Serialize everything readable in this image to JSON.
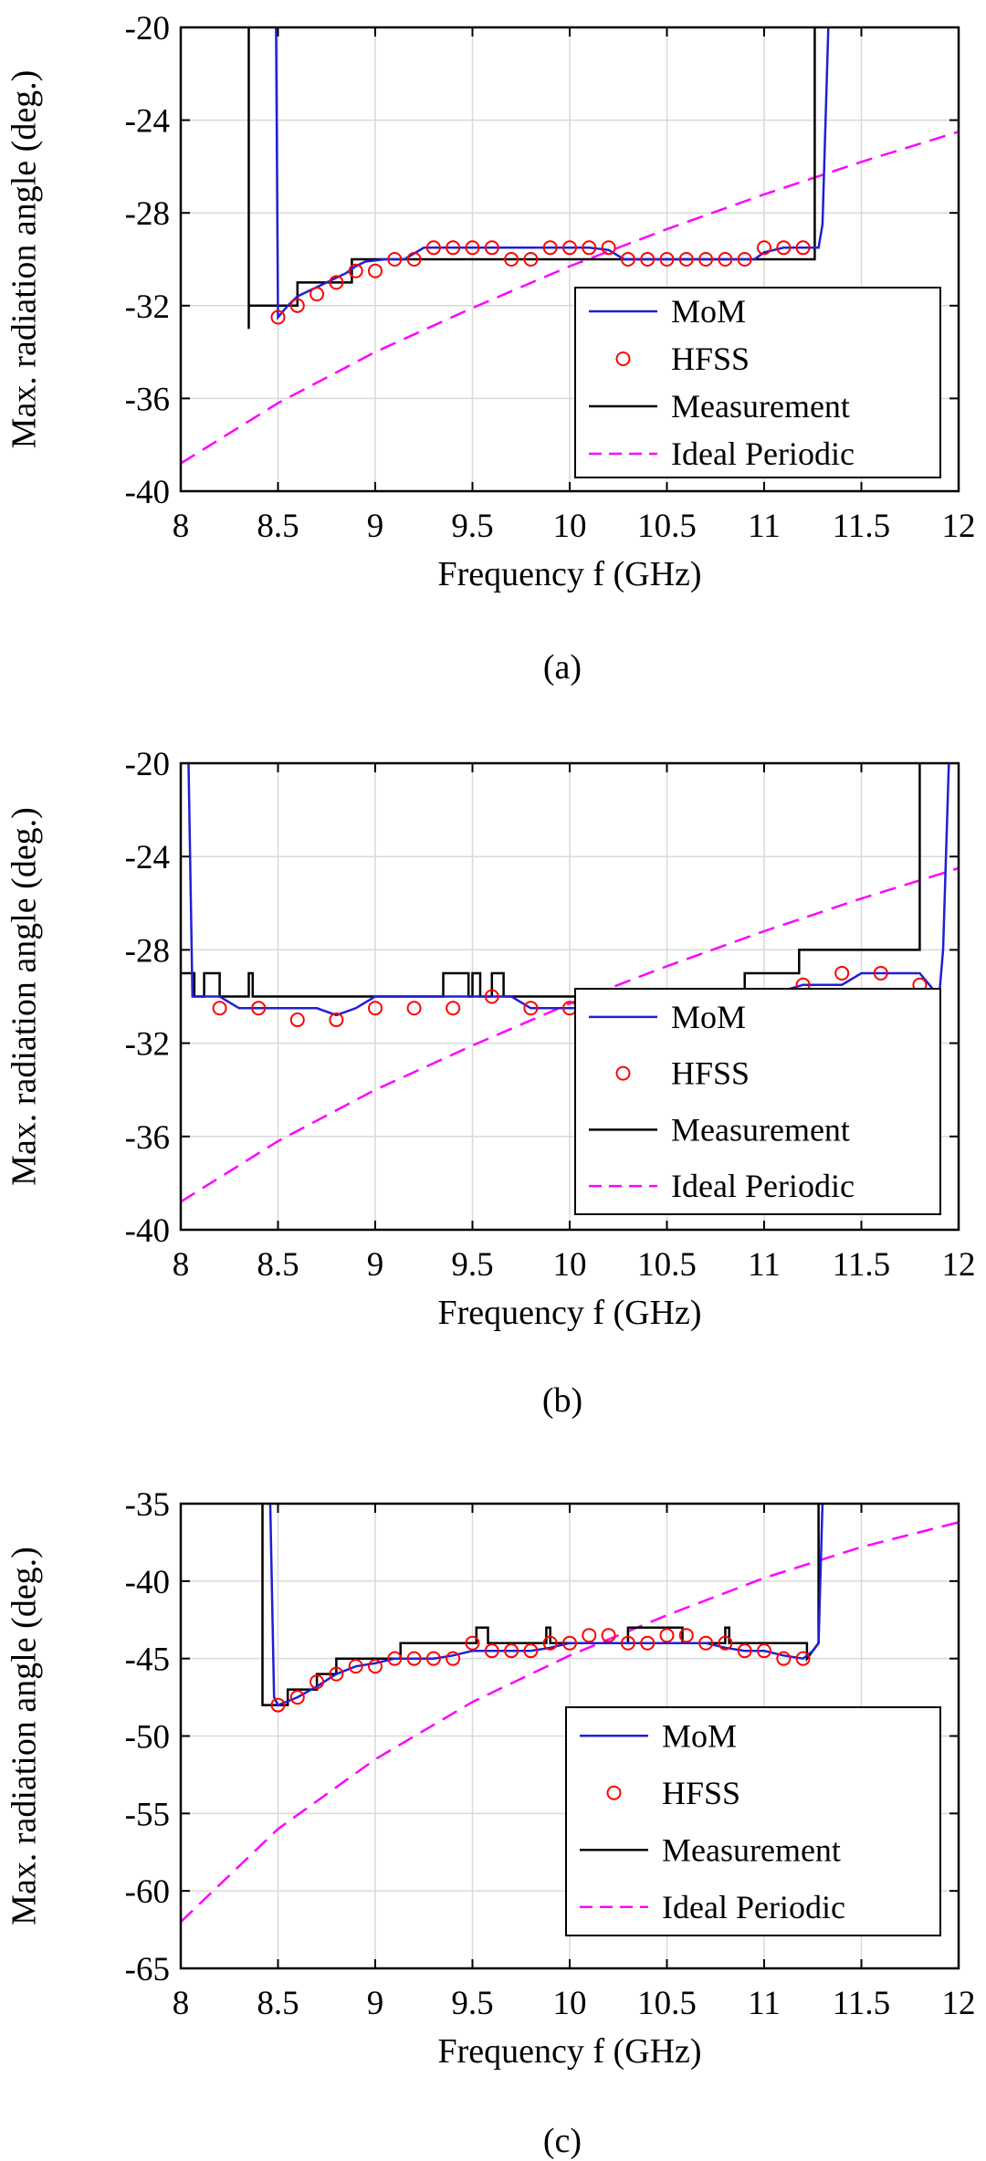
{
  "colors": {
    "mom": "#1f1fd6",
    "hfss": "#ff0000",
    "measurement": "#000000",
    "ideal": "#ff00ff",
    "grid": "#d9d9d9"
  },
  "chart_data": [
    {
      "type": "line",
      "caption": "(a)",
      "xlabel": "Frequency f (GHz)",
      "ylabel": "Max. radiation angle (deg.)",
      "xlim": [
        8,
        12
      ],
      "ylim": [
        -40,
        -20
      ],
      "xticks": [
        8,
        8.5,
        9,
        9.5,
        10,
        10.5,
        11,
        11.5,
        12
      ],
      "xtick_labels": [
        "8",
        "8.5",
        "9",
        "9.5",
        "10",
        "10.5",
        "11",
        "11.5",
        "12"
      ],
      "yticks": [
        -40,
        -36,
        -32,
        -28,
        -24,
        -20
      ],
      "ytick_labels": [
        "-40",
        "-36",
        "-32",
        "-28",
        "-24",
        "-20"
      ],
      "grid": true,
      "legend_position": "bottom-right",
      "series": [
        {
          "name": "MoM",
          "style": "solid",
          "color": "#1f1fd6",
          "x": [
            8.49,
            8.5,
            8.55,
            8.6,
            8.7,
            8.8,
            8.85,
            8.9,
            8.95,
            9.05,
            9.15,
            9.25,
            9.4,
            9.6,
            9.8,
            10.0,
            10.1,
            10.2,
            10.28,
            10.4,
            10.6,
            10.8,
            10.95,
            11.0,
            11.1,
            11.2,
            11.28,
            11.3,
            11.33
          ],
          "y": [
            -20,
            -32.5,
            -32.0,
            -31.6,
            -31.2,
            -30.8,
            -30.6,
            -30.3,
            -30.1,
            -30.0,
            -30.0,
            -29.5,
            -29.5,
            -29.5,
            -29.5,
            -29.5,
            -29.5,
            -29.6,
            -30.0,
            -30.0,
            -30.0,
            -30.0,
            -30.0,
            -29.7,
            -29.5,
            -29.5,
            -29.5,
            -28.5,
            -20
          ]
        },
        {
          "name": "HFSS",
          "style": "markers",
          "color": "#ff0000",
          "x": [
            8.5,
            8.6,
            8.7,
            8.8,
            8.9,
            9.0,
            9.1,
            9.2,
            9.3,
            9.4,
            9.5,
            9.6,
            9.7,
            9.8,
            9.9,
            10.0,
            10.1,
            10.2,
            10.3,
            10.4,
            10.5,
            10.6,
            10.7,
            10.8,
            10.9,
            11.0,
            11.1,
            11.2
          ],
          "y": [
            -32.5,
            -32.0,
            -31.5,
            -31.0,
            -30.5,
            -30.5,
            -30.0,
            -30.0,
            -29.5,
            -29.5,
            -29.5,
            -29.5,
            -30.0,
            -30.0,
            -29.5,
            -29.5,
            -29.5,
            -29.5,
            -30.0,
            -30.0,
            -30.0,
            -30.0,
            -30.0,
            -30.0,
            -30.0,
            -29.5,
            -29.5,
            -29.5
          ]
        },
        {
          "name": "Measurement",
          "style": "step",
          "color": "#000000",
          "x": [
            8.35,
            8.35,
            8.35,
            8.6,
            8.6,
            8.88,
            8.88,
            11.26,
            11.26,
            11.26
          ],
          "y": [
            -20,
            -33,
            -32,
            -32,
            -31,
            -31,
            -30,
            -30,
            -30,
            -20
          ]
        },
        {
          "name": "Ideal Periodic",
          "style": "dashed",
          "color": "#ff00ff",
          "x": [
            8.0,
            8.5,
            9.0,
            9.5,
            10.0,
            10.5,
            11.0,
            11.5,
            12.0
          ],
          "y": [
            -38.8,
            -36.2,
            -34.0,
            -32.1,
            -30.3,
            -28.7,
            -27.2,
            -25.8,
            -24.5
          ]
        }
      ]
    },
    {
      "type": "line",
      "caption": "(b)",
      "xlabel": "Frequency f (GHz)",
      "ylabel": "Max. radiation angle (deg.)",
      "xlim": [
        8,
        12
      ],
      "ylim": [
        -40,
        -20
      ],
      "xticks": [
        8,
        8.5,
        9,
        9.5,
        10,
        10.5,
        11,
        11.5,
        12
      ],
      "xtick_labels": [
        "8",
        "8.5",
        "9",
        "9.5",
        "10",
        "10.5",
        "11",
        "11.5",
        "12"
      ],
      "yticks": [
        -40,
        -36,
        -32,
        -28,
        -24,
        -20
      ],
      "ytick_labels": [
        "-40",
        "-36",
        "-32",
        "-28",
        "-24",
        "-20"
      ],
      "grid": true,
      "legend_position": "bottom-right",
      "series": [
        {
          "name": "MoM",
          "style": "solid",
          "color": "#1f1fd6",
          "x": [
            8.04,
            8.06,
            8.1,
            8.2,
            8.3,
            8.4,
            8.5,
            8.6,
            8.7,
            8.8,
            8.9,
            9.0,
            9.1,
            9.2,
            9.3,
            9.4,
            9.5,
            9.6,
            9.7,
            9.8,
            10.0,
            10.2,
            10.4,
            10.6,
            10.8,
            11.0,
            11.2,
            11.4,
            11.5,
            11.6,
            11.8,
            11.9,
            11.92,
            11.95
          ],
          "y": [
            -20,
            -30.0,
            -30.0,
            -30.0,
            -30.5,
            -30.5,
            -30.5,
            -30.5,
            -30.5,
            -30.8,
            -30.5,
            -30.0,
            -30.0,
            -30.0,
            -30.0,
            -30.0,
            -30.0,
            -30.0,
            -30.0,
            -30.5,
            -30.5,
            -30.5,
            -30.5,
            -30.0,
            -30.0,
            -30.0,
            -29.5,
            -29.5,
            -29.0,
            -29.0,
            -29.0,
            -30.0,
            -28.0,
            -20
          ]
        },
        {
          "name": "HFSS",
          "style": "markers",
          "color": "#ff0000",
          "x": [
            8.2,
            8.4,
            8.6,
            8.8,
            9.0,
            9.2,
            9.4,
            9.6,
            9.8,
            10.0,
            10.2,
            10.4,
            10.6,
            10.8,
            11.0,
            11.2,
            11.4,
            11.6,
            11.8
          ],
          "y": [
            -30.5,
            -30.5,
            -31.0,
            -31.0,
            -30.5,
            -30.5,
            -30.5,
            -30.0,
            -30.5,
            -30.5,
            -30.5,
            -30.5,
            -30.0,
            -30.0,
            -30.0,
            -29.5,
            -29.0,
            -29.0,
            -29.5
          ]
        },
        {
          "name": "Measurement",
          "style": "step",
          "color": "#000000",
          "x": [
            8.0,
            8.07,
            8.07,
            8.12,
            8.12,
            8.2,
            8.2,
            8.35,
            8.35,
            8.37,
            8.37,
            9.35,
            9.35,
            9.48,
            9.48,
            9.5,
            9.5,
            9.54,
            9.54,
            9.6,
            9.6,
            9.66,
            9.66,
            9.72,
            9.72,
            10.9,
            10.9,
            10.92,
            10.92,
            11.18,
            11.18,
            11.8,
            11.8
          ],
          "y": [
            -29.0,
            -29.0,
            -30.0,
            -30.0,
            -29.0,
            -29.0,
            -30.0,
            -30.0,
            -29.0,
            -29.0,
            -30.0,
            -30.0,
            -29.0,
            -29.0,
            -30.0,
            -30.0,
            -29.0,
            -29.0,
            -30.0,
            -30.0,
            -29.0,
            -29.0,
            -30.0,
            -30.0,
            -30.0,
            -30.0,
            -29.0,
            -29.0,
            -29.0,
            -29.0,
            -28.0,
            -28.0,
            -20.0
          ]
        },
        {
          "name": "Ideal Periodic",
          "style": "dashed",
          "color": "#ff00ff",
          "x": [
            8.0,
            8.5,
            9.0,
            9.5,
            10.0,
            10.5,
            11.0,
            11.5,
            12.0
          ],
          "y": [
            -38.8,
            -36.2,
            -34.0,
            -32.1,
            -30.3,
            -28.7,
            -27.2,
            -25.8,
            -24.5
          ]
        }
      ]
    },
    {
      "type": "line",
      "caption": "(c)",
      "xlabel": "Frequency f (GHz)",
      "ylabel": "Max. radiation angle (deg.)",
      "xlim": [
        8,
        12
      ],
      "ylim": [
        -65,
        -35
      ],
      "xticks": [
        8,
        8.5,
        9,
        9.5,
        10,
        10.5,
        11,
        11.5,
        12
      ],
      "xtick_labels": [
        "8",
        "8.5",
        "9",
        "9.5",
        "10",
        "10.5",
        "11",
        "11.5",
        "12"
      ],
      "yticks": [
        -65,
        -60,
        -55,
        -50,
        -45,
        -40,
        -35
      ],
      "ytick_labels": [
        "-65",
        "-60",
        "-55",
        "-50",
        "-45",
        "-40",
        "-35"
      ],
      "grid": true,
      "legend_position": "bottom-right",
      "series": [
        {
          "name": "MoM",
          "style": "solid",
          "color": "#1f1fd6",
          "x": [
            8.46,
            8.48,
            8.5,
            8.6,
            8.7,
            8.8,
            8.9,
            9.0,
            9.1,
            9.2,
            9.3,
            9.4,
            9.5,
            9.6,
            9.7,
            9.8,
            9.9,
            10.0,
            10.1,
            10.2,
            10.3,
            10.4,
            10.5,
            10.6,
            10.7,
            10.8,
            10.9,
            11.0,
            11.1,
            11.2,
            11.25,
            11.28,
            11.3
          ],
          "y": [
            -35,
            -47.5,
            -48.0,
            -47.5,
            -46.8,
            -46.0,
            -45.5,
            -45.3,
            -45.0,
            -45.0,
            -45.0,
            -44.8,
            -44.5,
            -44.5,
            -44.5,
            -44.5,
            -44.3,
            -44.0,
            -44.0,
            -44.0,
            -44.0,
            -44.0,
            -44.0,
            -44.0,
            -44.0,
            -44.3,
            -44.5,
            -44.5,
            -44.8,
            -45.0,
            -44.5,
            -44.0,
            -35
          ]
        },
        {
          "name": "HFSS",
          "style": "markers",
          "color": "#ff0000",
          "x": [
            8.5,
            8.6,
            8.7,
            8.8,
            8.9,
            9.0,
            9.1,
            9.2,
            9.3,
            9.4,
            9.5,
            9.6,
            9.7,
            9.8,
            9.9,
            10.0,
            10.1,
            10.2,
            10.3,
            10.4,
            10.5,
            10.6,
            10.7,
            10.8,
            10.9,
            11.0,
            11.1,
            11.2
          ],
          "y": [
            -48.0,
            -47.5,
            -46.5,
            -46.0,
            -45.5,
            -45.5,
            -45.0,
            -45.0,
            -45.0,
            -45.0,
            -44.0,
            -44.5,
            -44.5,
            -44.5,
            -44.0,
            -44.0,
            -43.5,
            -43.5,
            -44.0,
            -44.0,
            -43.5,
            -43.5,
            -44.0,
            -44.0,
            -44.5,
            -44.5,
            -45.0,
            -45.0
          ]
        },
        {
          "name": "Measurement",
          "style": "step",
          "color": "#000000",
          "x": [
            8.42,
            8.42,
            8.55,
            8.55,
            8.7,
            8.7,
            8.8,
            8.8,
            9.13,
            9.13,
            9.52,
            9.52,
            9.58,
            9.58,
            9.88,
            9.88,
            9.9,
            9.9,
            10.3,
            10.3,
            10.58,
            10.58,
            10.8,
            10.8,
            10.82,
            10.82,
            11.22,
            11.22,
            11.28,
            11.28
          ],
          "y": [
            -35,
            -48.0,
            -48.0,
            -47.0,
            -47.0,
            -46.0,
            -46.0,
            -45.0,
            -45.0,
            -44.0,
            -44.0,
            -43.0,
            -43.0,
            -44.0,
            -44.0,
            -43.0,
            -43.0,
            -44.0,
            -44.0,
            -43.0,
            -43.0,
            -44.0,
            -44.0,
            -43.0,
            -43.0,
            -44.0,
            -44.0,
            -45.0,
            -44.0,
            -35
          ]
        },
        {
          "name": "Ideal Periodic",
          "style": "dashed",
          "color": "#ff00ff",
          "x": [
            8.0,
            8.5,
            9.0,
            9.5,
            10.0,
            10.5,
            11.0,
            11.5,
            12.0
          ],
          "y": [
            -62.0,
            -56.0,
            -51.5,
            -47.8,
            -44.8,
            -42.2,
            -39.8,
            -37.8,
            -36.2
          ]
        }
      ]
    }
  ]
}
